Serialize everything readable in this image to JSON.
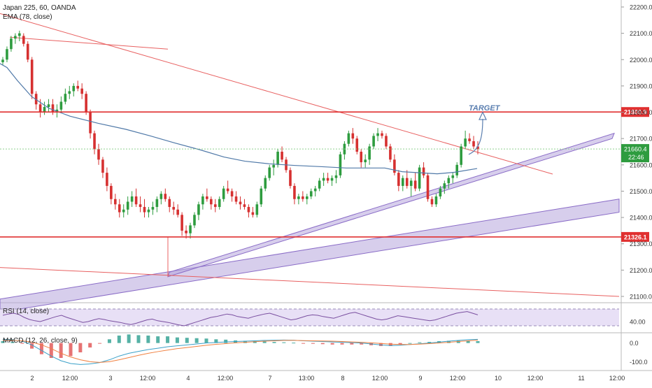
{
  "header": {
    "symbol_line": "Japan 225, 60, OANDA",
    "ema_line": "EMA (78, close)"
  },
  "colors": {
    "up": "#2e9c3f",
    "down": "#d63030",
    "ema": "#5079a8",
    "level_line": "#e03030",
    "trend_line": "#e86060",
    "channel_fill": "#b7a6dc",
    "channel_stroke": "#8a6cc7",
    "rsi_line": "#7a4fa0",
    "rsi_band": "#e8e0f6",
    "macd_line": "#3aa0c8",
    "signal_line": "#f08040",
    "hist_up": "#2a9d8f",
    "hist_down": "#e05050",
    "target": "#5b7fb0",
    "last_price_bg": "#2e9c3f"
  },
  "chart_data": [
    {
      "type": "candlestick",
      "title": "Japan 225, 60, OANDA",
      "indicator": "EMA (78, close)",
      "ylim": [
        21050,
        22250
      ],
      "y_ticks": [
        22200,
        22100,
        22000,
        21900,
        21800,
        21700,
        21600,
        21500,
        21400,
        21300,
        21200,
        21100
      ],
      "x_tick_labels": [
        "2",
        "12:00",
        "3",
        "12:00",
        "4",
        "12:00",
        "7",
        "13:00",
        "8",
        "12:00",
        "9",
        "12:00",
        "10",
        "12:00",
        "11",
        "12:00"
      ],
      "horizontal_levels": [
        {
          "value": 21800.9,
          "label": "21800.9"
        },
        {
          "value": 21326.1,
          "label": "21326.1"
        }
      ],
      "last_price": {
        "value": 21660.4,
        "label": "21660.4",
        "countdown": "22:46"
      },
      "annotation": {
        "text": "TARGET",
        "value": 21800
      },
      "series": [
        {
          "name": "EMA (78, close)",
          "type": "line",
          "points": [
            [
              0,
              21985
            ],
            [
              10,
              21970
            ],
            [
              25,
              21920
            ],
            [
              45,
              21860
            ],
            [
              70,
              21815
            ],
            [
              100,
              21785
            ],
            [
              140,
              21758
            ],
            [
              180,
              21735
            ],
            [
              215,
              21710
            ],
            [
              250,
              21683
            ],
            [
              285,
              21658
            ],
            [
              320,
              21630
            ],
            [
              350,
              21614
            ],
            [
              385,
              21604
            ],
            [
              420,
              21598
            ],
            [
              460,
              21593
            ],
            [
              495,
              21588
            ],
            [
              525,
              21588
            ],
            [
              550,
              21588
            ],
            [
              575,
              21574
            ],
            [
              600,
              21570
            ],
            [
              625,
              21566
            ],
            [
              650,
              21572
            ],
            [
              682,
              21586
            ]
          ]
        }
      ],
      "candles": [
        [
          21990,
          22010,
          21980,
          22000
        ],
        [
          22000,
          22050,
          21990,
          22040
        ],
        [
          22040,
          22090,
          22030,
          22080
        ],
        [
          22080,
          22100,
          22060,
          22090
        ],
        [
          22090,
          22110,
          22070,
          22100
        ],
        [
          22090,
          22100,
          22050,
          22060
        ],
        [
          22060,
          22070,
          21990,
          22000
        ],
        [
          22000,
          22010,
          21850,
          21870
        ],
        [
          21870,
          21880,
          21810,
          21830
        ],
        [
          21830,
          21850,
          21780,
          21800
        ],
        [
          21800,
          21840,
          21790,
          21820
        ],
        [
          21820,
          21850,
          21800,
          21830
        ],
        [
          21830,
          21850,
          21790,
          21800
        ],
        [
          21800,
          21830,
          21780,
          21810
        ],
        [
          21810,
          21860,
          21800,
          21840
        ],
        [
          21840,
          21890,
          21830,
          21870
        ],
        [
          21870,
          21900,
          21850,
          21880
        ],
        [
          21880,
          21910,
          21860,
          21900
        ],
        [
          21900,
          21920,
          21880,
          21890
        ],
        [
          21890,
          21910,
          21850,
          21870
        ],
        [
          21870,
          21880,
          21790,
          21800
        ],
        [
          21800,
          21810,
          21700,
          21720
        ],
        [
          21720,
          21730,
          21640,
          21660
        ],
        [
          21660,
          21680,
          21600,
          21620
        ],
        [
          21620,
          21630,
          21550,
          21570
        ],
        [
          21570,
          21590,
          21500,
          21520
        ],
        [
          21520,
          21530,
          21450,
          21470
        ],
        [
          21470,
          21490,
          21430,
          21450
        ],
        [
          21450,
          21470,
          21400,
          21420
        ],
        [
          21420,
          21450,
          21400,
          21430
        ],
        [
          21430,
          21480,
          21410,
          21460
        ],
        [
          21460,
          21500,
          21440,
          21480
        ],
        [
          21480,
          21510,
          21440,
          21450
        ],
        [
          21450,
          21480,
          21420,
          21440
        ],
        [
          21440,
          21470,
          21400,
          21420
        ],
        [
          21420,
          21440,
          21400,
          21430
        ],
        [
          21430,
          21460,
          21410,
          21440
        ],
        [
          21440,
          21480,
          21420,
          21470
        ],
        [
          21470,
          21500,
          21450,
          21490
        ],
        [
          21490,
          21510,
          21460,
          21470
        ],
        [
          21470,
          21480,
          21420,
          21440
        ],
        [
          21440,
          21460,
          21410,
          21430
        ],
        [
          21430,
          21450,
          21400,
          21410
        ],
        [
          21410,
          21420,
          21330,
          21350
        ],
        [
          21350,
          21370,
          21320,
          21340
        ],
        [
          21340,
          21380,
          21320,
          21370
        ],
        [
          21370,
          21420,
          21360,
          21410
        ],
        [
          21410,
          21460,
          21390,
          21450
        ],
        [
          21450,
          21490,
          21430,
          21480
        ],
        [
          21480,
          21510,
          21460,
          21470
        ],
        [
          21470,
          21480,
          21430,
          21450
        ],
        [
          21450,
          21470,
          21420,
          21440
        ],
        [
          21440,
          21480,
          21430,
          21470
        ],
        [
          21470,
          21520,
          21460,
          21510
        ],
        [
          21510,
          21540,
          21490,
          21500
        ],
        [
          21500,
          21510,
          21460,
          21480
        ],
        [
          21480,
          21500,
          21450,
          21460
        ],
        [
          21460,
          21480,
          21430,
          21450
        ],
        [
          21450,
          21470,
          21430,
          21440
        ],
        [
          21440,
          21450,
          21400,
          21420
        ],
        [
          21420,
          21440,
          21400,
          21410
        ],
        [
          21410,
          21460,
          21400,
          21450
        ],
        [
          21450,
          21520,
          21440,
          21510
        ],
        [
          21510,
          21560,
          21500,
          21550
        ],
        [
          21550,
          21600,
          21540,
          21590
        ],
        [
          21590,
          21620,
          21560,
          21600
        ],
        [
          21600,
          21660,
          21590,
          21650
        ],
        [
          21650,
          21670,
          21610,
          21620
        ],
        [
          21620,
          21630,
          21570,
          21580
        ],
        [
          21580,
          21590,
          21510,
          21520
        ],
        [
          21520,
          21530,
          21450,
          21470
        ],
        [
          21470,
          21490,
          21450,
          21480
        ],
        [
          21480,
          21500,
          21460,
          21470
        ],
        [
          21470,
          21490,
          21450,
          21480
        ],
        [
          21480,
          21510,
          21470,
          21500
        ],
        [
          21500,
          21520,
          21480,
          21510
        ],
        [
          21510,
          21550,
          21500,
          21540
        ],
        [
          21540,
          21570,
          21520,
          21550
        ],
        [
          21550,
          21570,
          21530,
          21540
        ],
        [
          21540,
          21560,
          21520,
          21550
        ],
        [
          21550,
          21580,
          21530,
          21560
        ],
        [
          21560,
          21650,
          21550,
          21640
        ],
        [
          21640,
          21690,
          21620,
          21680
        ],
        [
          21680,
          21730,
          21670,
          21720
        ],
        [
          21720,
          21740,
          21680,
          21700
        ],
        [
          21700,
          21710,
          21640,
          21650
        ],
        [
          21650,
          21660,
          21590,
          21610
        ],
        [
          21610,
          21640,
          21590,
          21620
        ],
        [
          21620,
          21680,
          21600,
          21670
        ],
        [
          21670,
          21720,
          21660,
          21710
        ],
        [
          21710,
          21740,
          21690,
          21720
        ],
        [
          21720,
          21730,
          21700,
          21710
        ],
        [
          21710,
          21720,
          21660,
          21670
        ],
        [
          21670,
          21680,
          21610,
          21620
        ],
        [
          21620,
          21640,
          21560,
          21570
        ],
        [
          21570,
          21580,
          21500,
          21520
        ],
        [
          21520,
          21560,
          21500,
          21550
        ],
        [
          21550,
          21580,
          21510,
          21520
        ],
        [
          21520,
          21550,
          21480,
          21540
        ],
        [
          21540,
          21570,
          21500,
          21510
        ],
        [
          21510,
          21600,
          21500,
          21590
        ],
        [
          21590,
          21610,
          21550,
          21560
        ],
        [
          21560,
          21570,
          21460,
          21470
        ],
        [
          21470,
          21480,
          21440,
          21450
        ],
        [
          21450,
          21490,
          21440,
          21480
        ],
        [
          21480,
          21520,
          21470,
          21510
        ],
        [
          21510,
          21540,
          21490,
          21530
        ],
        [
          21530,
          21560,
          21510,
          21550
        ],
        [
          21550,
          21570,
          21530,
          21560
        ],
        [
          21560,
          21610,
          21550,
          21600
        ],
        [
          21600,
          21680,
          21590,
          21670
        ],
        [
          21670,
          21730,
          21660,
          21700
        ],
        [
          21700,
          21720,
          21680,
          21690
        ],
        [
          21690,
          21710,
          21660,
          21670
        ],
        [
          21670,
          21690,
          21640,
          21660
        ]
      ]
    },
    {
      "type": "line",
      "title": "RSI (14, close)",
      "ylim": [
        20,
        80
      ],
      "y_ticks": [
        40
      ],
      "band": [
        30,
        70
      ],
      "values": [
        55,
        58,
        60,
        57,
        50,
        45,
        42,
        40,
        44,
        48,
        52,
        55,
        50,
        46,
        42,
        38,
        40,
        44,
        47,
        45,
        42,
        40,
        38,
        35,
        33,
        36,
        40,
        44,
        46,
        42,
        40,
        38,
        35,
        32,
        30,
        34,
        38,
        42,
        46,
        50,
        52,
        55,
        58,
        56,
        52,
        50,
        48,
        52,
        55,
        58,
        60,
        56,
        52,
        48,
        44,
        46,
        50,
        54,
        56,
        55,
        52,
        50,
        48,
        52,
        56,
        60,
        62,
        58,
        54,
        50,
        46,
        44,
        46,
        50,
        54,
        52,
        50,
        48,
        46,
        44,
        42,
        44,
        48,
        52,
        56,
        60,
        62,
        64,
        60,
        56
      ]
    },
    {
      "type": "line",
      "title": "MACD (12, 26, close, 9)",
      "ylim": [
        -140,
        40
      ],
      "y_ticks": [
        0.0,
        -100.0
      ],
      "series": [
        {
          "name": "MACD",
          "values": [
            20,
            18,
            10,
            -10,
            -40,
            -70,
            -95,
            -110,
            -115,
            -112,
            -105,
            -90,
            -70,
            -55,
            -45,
            -35,
            -28,
            -20,
            -15,
            -10,
            -5,
            0,
            3,
            6,
            8,
            10,
            12,
            14,
            15,
            16,
            15,
            12,
            10,
            8,
            6,
            4,
            2,
            0,
            -5,
            -10,
            -14,
            -12,
            -8,
            -4,
            0,
            5,
            10,
            14,
            18,
            20
          ]
        },
        {
          "name": "Signal",
          "values": [
            15,
            15,
            12,
            5,
            -10,
            -30,
            -55,
            -75,
            -90,
            -100,
            -104,
            -100,
            -90,
            -78,
            -66,
            -55,
            -46,
            -38,
            -30,
            -24,
            -18,
            -12,
            -7,
            -3,
            1,
            4,
            7,
            10,
            12,
            14,
            14,
            13,
            12,
            11,
            10,
            8,
            6,
            4,
            1,
            -2,
            -6,
            -8,
            -8,
            -6,
            -3,
            0,
            4,
            8,
            12,
            15
          ]
        }
      ]
    }
  ]
}
